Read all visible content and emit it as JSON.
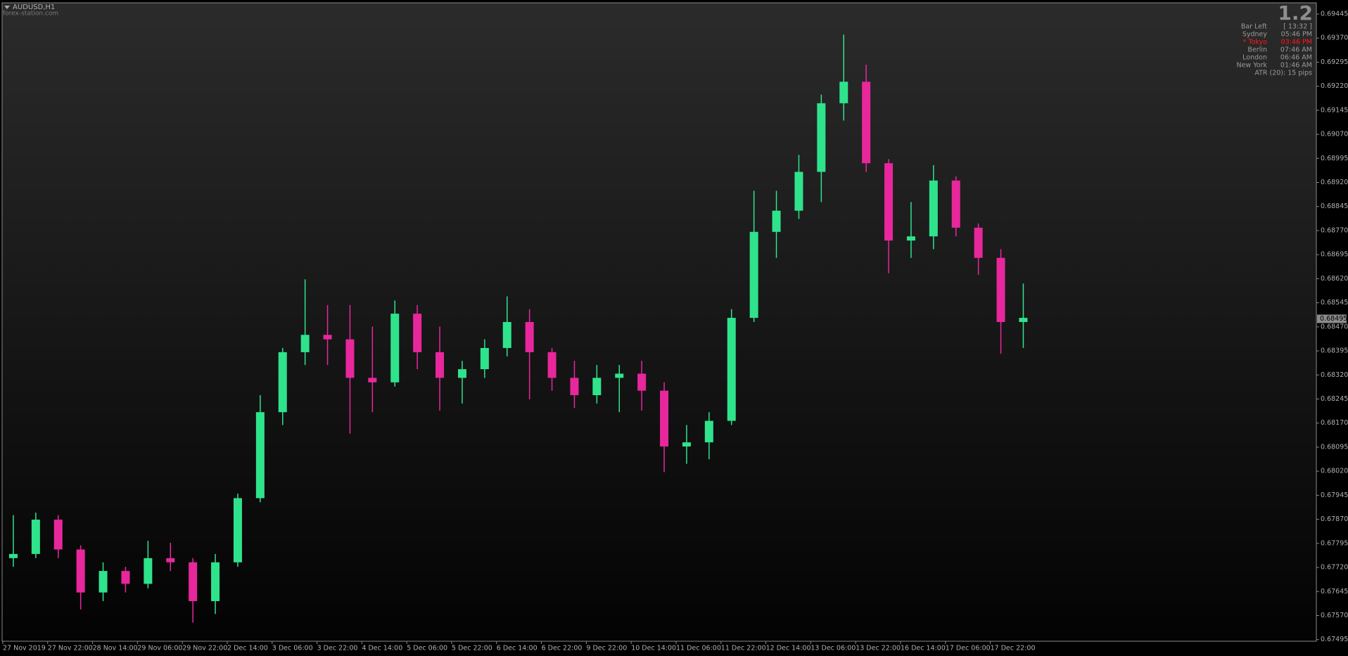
{
  "symbol": "AUDUSD,H1",
  "watermark": "forex-station.com",
  "info_panel": {
    "big": "1.2",
    "rows": [
      {
        "label": "Bar Left",
        "value": "[ 13:32 ]",
        "color": "#9a9a9a"
      },
      {
        "label": "Sydney",
        "value": "05:46 PM",
        "color": "#9a9a9a"
      },
      {
        "label": "* Tokyo",
        "value": "03:46 PM",
        "color": "#ff1a1a"
      },
      {
        "label": "Berlin",
        "value": "07:46 AM",
        "color": "#9a9a9a"
      },
      {
        "label": "London",
        "value": "06:46 AM",
        "color": "#9a9a9a"
      },
      {
        "label": "New York",
        "value": "01:46 AM",
        "color": "#9a9a9a"
      }
    ],
    "atr": "ATR (20): 15 pips"
  },
  "chart_data": {
    "type": "candlestick",
    "up_color": "#2fe38c",
    "down_color": "#e8279c",
    "current_price": 0.68495,
    "categories": [
      "27 Nov 2019",
      null,
      "27 Nov 22:00",
      null,
      "28 Nov 14:00",
      null,
      "29 Nov 06:00",
      null,
      "29 Nov 22:00",
      null,
      "2 Dec 14:00",
      null,
      "3 Dec 06:00",
      null,
      "3 Dec 22:00",
      null,
      "4 Dec 14:00",
      null,
      "5 Dec 06:00",
      null,
      "5 Dec 22:00",
      null,
      "6 Dec 14:00",
      null,
      "6 Dec 22:00",
      null,
      "9 Dec 22:00",
      null,
      "10 Dec 14:00",
      null,
      "11 Dec 06:00",
      null,
      "11 Dec 22:00",
      null,
      "12 Dec 14:00",
      null,
      "13 Dec 06:00",
      null,
      "13 Dec 22:00",
      null,
      "16 Dec 14:00",
      null,
      "17 Dec 06:00",
      null,
      "17 Dec 22:00",
      null
    ],
    "open": [
      0.67749,
      0.67762,
      0.67869,
      0.67776,
      0.67642,
      0.67709,
      0.67669,
      0.67749,
      0.67736,
      0.67615,
      0.67736,
      0.67936,
      0.68204,
      0.68391,
      0.68445,
      0.68431,
      0.68311,
      0.68297,
      0.68511,
      0.68391,
      0.68311,
      0.68338,
      0.68404,
      0.68485,
      0.68391,
      0.68311,
      0.68257,
      0.68311,
      0.68324,
      0.68271,
      0.68097,
      0.6811,
      0.68177,
      0.68498,
      0.68766,
      0.68832,
      0.68953,
      0.69167,
      0.69234,
      0.6898,
      0.68739,
      0.68752,
      0.68926,
      0.68779,
      0.68685,
      0.68485
    ],
    "high": [
      0.67883,
      0.67891,
      0.67883,
      0.67789,
      0.67736,
      0.67722,
      0.67803,
      0.67797,
      0.67749,
      0.67762,
      0.6795,
      0.68257,
      0.68404,
      0.68618,
      0.68538,
      0.68538,
      0.68471,
      0.68552,
      0.68538,
      0.68471,
      0.68364,
      0.68431,
      0.68565,
      0.68525,
      0.68404,
      0.68364,
      0.68351,
      0.68351,
      0.68364,
      0.68297,
      0.68164,
      0.68204,
      0.68525,
      0.68894,
      0.68894,
      0.69006,
      0.69194,
      0.69381,
      0.69287,
      0.68993,
      0.68859,
      0.68974,
      0.68939,
      0.68792,
      0.68712,
      0.68605
    ],
    "low": [
      0.67722,
      0.67749,
      0.67749,
      0.67589,
      0.67615,
      0.67642,
      0.67655,
      0.67709,
      0.67548,
      0.67575,
      0.67722,
      0.67923,
      0.68164,
      0.68351,
      0.68351,
      0.68137,
      0.68204,
      0.68284,
      0.68338,
      0.68209,
      0.68231,
      0.68311,
      0.68378,
      0.68244,
      0.68271,
      0.68217,
      0.68231,
      0.68204,
      0.68209,
      0.68017,
      0.68043,
      0.68057,
      0.68164,
      0.68485,
      0.68685,
      0.68806,
      0.68859,
      0.69113,
      0.68953,
      0.68637,
      0.68685,
      0.68712,
      0.68752,
      0.68632,
      0.68386,
      0.68404
    ],
    "close": [
      0.67762,
      0.67869,
      0.67776,
      0.67642,
      0.67709,
      0.67669,
      0.67749,
      0.67736,
      0.67615,
      0.67736,
      0.67936,
      0.68204,
      0.68391,
      0.68445,
      0.68431,
      0.68311,
      0.68297,
      0.68511,
      0.68391,
      0.68311,
      0.68338,
      0.68404,
      0.68485,
      0.68391,
      0.68311,
      0.68257,
      0.68311,
      0.68324,
      0.68271,
      0.68097,
      0.6811,
      0.68177,
      0.68498,
      0.68766,
      0.68832,
      0.68953,
      0.69167,
      0.69234,
      0.6898,
      0.68739,
      0.68752,
      0.68926,
      0.68779,
      0.68685,
      0.68485,
      0.68498
    ],
    "ylim": [
      0.6749,
      0.6948
    ],
    "yticks": [
      0.69445,
      {
        "value": 0.6937,
        "label": "0.69370"
      },
      0.69295,
      {
        "value": 0.6922,
        "label": "0.69220"
      },
      0.69145,
      {
        "value": 0.6907,
        "label": "0.69070"
      },
      0.68995,
      {
        "value": 0.6892,
        "label": "0.68920"
      },
      0.68845,
      {
        "value": 0.6877,
        "label": "0.68770"
      },
      0.68695,
      {
        "value": 0.6862,
        "label": "0.68620"
      },
      0.68545,
      {
        "value": 0.6847,
        "label": "0.68470"
      },
      0.68395,
      {
        "value": 0.6832,
        "label": "0.68320"
      },
      0.68245,
      {
        "value": 0.6817,
        "label": "0.68170"
      },
      0.68095,
      {
        "value": 0.6802,
        "label": "0.68020"
      },
      0.67945,
      {
        "value": 0.6787,
        "label": "0.67870"
      },
      0.67795,
      {
        "value": 0.6772,
        "label": "0.67720"
      },
      0.67645,
      {
        "value": 0.6757,
        "label": "0.67570"
      },
      0.67495
    ]
  }
}
